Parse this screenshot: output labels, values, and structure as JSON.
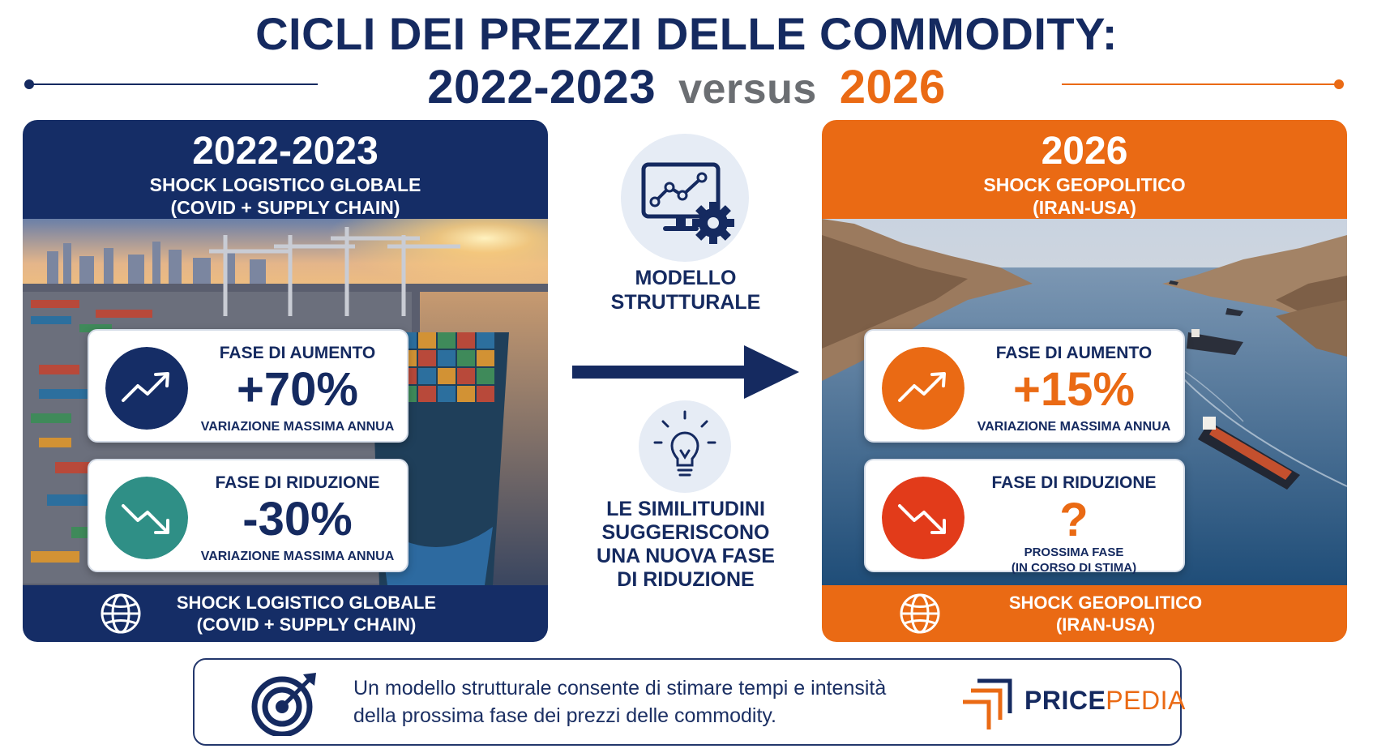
{
  "header": {
    "title_line1": "CICLI DEI PREZZI DELLE COMMODITY:",
    "year_left": "2022-2023",
    "versus": "versus",
    "year_right": "2026"
  },
  "colors": {
    "navy": "#152d66",
    "orange": "#ea6a14",
    "teal": "#2f8f86",
    "red": "#e23b1a"
  },
  "left_panel": {
    "year": "2022-2023",
    "subtitle_1": "SHOCK LOGISTICO GLOBALE",
    "subtitle_2": "(COVID + SUPPLY CHAIN)",
    "photo": "container-port-photo",
    "card_up": {
      "label": "FASE DI AUMENTO",
      "value": "+70%",
      "note": "VARIAZIONE MASSIMA ANNUA",
      "icon": "trend-up-icon"
    },
    "card_down": {
      "label": "FASE DI RIDUZIONE",
      "value": "-30%",
      "note": "VARIAZIONE MASSIMA ANNUA",
      "icon": "trend-down-icon"
    },
    "footer_1": "SHOCK LOGISTICO GLOBALE",
    "footer_2": "(COVID + SUPPLY CHAIN)",
    "footer_icon": "globe-icon"
  },
  "middle": {
    "icon_1": "monitor-chart-gear-icon",
    "label_1a": "MODELLO",
    "label_1b": "STRUTTURALE",
    "arrow": "arrow-right-icon",
    "icon_2": "lightbulb-icon",
    "label_2a": "LE SIMILITUDINI",
    "label_2b": "SUGGERISCONO",
    "label_2c": "UNA NUOVA FASE",
    "label_2d": "DI RIDUZIONE"
  },
  "right_panel": {
    "year": "2026",
    "subtitle_1": "SHOCK GEOPOLITICO",
    "subtitle_2": "(IRAN-USA)",
    "photo": "strait-tankers-photo",
    "card_up": {
      "label": "FASE DI AUMENTO",
      "value": "+15%",
      "note": "VARIAZIONE MASSIMA ANNUA",
      "icon": "trend-up-icon"
    },
    "card_down": {
      "label": "FASE DI RIDUZIONE",
      "value": "?",
      "note_1": "PROSSIMA FASE",
      "note_2": "(IN CORSO DI STIMA)",
      "icon": "trend-down-icon"
    },
    "footer_1": "SHOCK GEOPOLITICO",
    "footer_2": "(IRAN-USA)",
    "footer_icon": "globe-icon"
  },
  "bottom": {
    "text_1": "Un modello strutturale consente di stimare tempi e intensità",
    "text_2": "della prossima fase dei prezzi delle commodity.",
    "icon": "target-arrow-icon",
    "logo_a": "PRICE",
    "logo_b": "PEDIA"
  }
}
